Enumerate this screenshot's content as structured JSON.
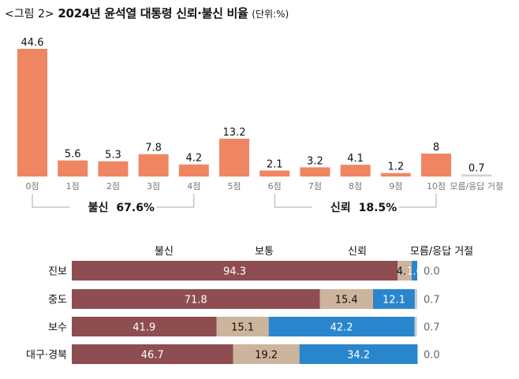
{
  "title": {
    "prefix": "<그림 2>",
    "main": "2024년 윤석열 대통령 신뢰·불신 비율",
    "unit": "(단위:%)"
  },
  "chart_data": [
    {
      "type": "bar",
      "title": "2024년 윤석열 대통령 신뢰·불신 비율",
      "categories": [
        "0점",
        "1점",
        "2점",
        "3점",
        "4점",
        "5점",
        "6점",
        "7점",
        "8점",
        "9점",
        "10점",
        "모름/응답 거절"
      ],
      "values": [
        44.6,
        5.6,
        5.3,
        7.8,
        4.2,
        13.2,
        2.1,
        3.2,
        4.1,
        1.2,
        8,
        0.7
      ],
      "value_labels": [
        "44.6",
        "5.6",
        "5.3",
        "7.8",
        "4.2",
        "13.2",
        "2.1",
        "3.2",
        "4.1",
        "1.2",
        "8",
        "0.7"
      ],
      "colors": {
        "bar": "#f08562",
        "na_bar": "#d0d0d0"
      },
      "groups": [
        {
          "label": "불신",
          "value_label": "67.6%",
          "from": "0점",
          "to": "4점"
        },
        {
          "label": "신뢰",
          "value_label": "18.5%",
          "from": "6점",
          "to": "10점"
        }
      ],
      "xlabel": "",
      "ylabel": "",
      "ylim": [
        0,
        50
      ],
      "grid": false
    },
    {
      "type": "bar",
      "orientation": "horizontal-stacked",
      "categories": [
        "진보",
        "중도",
        "보수",
        "대구·경북"
      ],
      "series": [
        {
          "name": "불신",
          "values": [
            94.3,
            71.8,
            41.9,
            46.7
          ],
          "color": "#8e4e51",
          "label_color": "#ffffff"
        },
        {
          "name": "보통",
          "values": [
            4.1,
            15.4,
            15.1,
            19.2
          ],
          "color": "#cdb49c",
          "label_color": "#111111"
        },
        {
          "name": "신뢰",
          "values": [
            1.6,
            12.1,
            42.2,
            34.2
          ],
          "color": "#2a86cc",
          "label_color": "#ffffff"
        },
        {
          "name": "모름/응답 거절",
          "values": [
            0.0,
            0.7,
            0.7,
            0.0
          ],
          "color": "#cccccc",
          "label_color": "#666666"
        }
      ],
      "value_labels": [
        [
          "94.3",
          "4.1",
          "1.6",
          "0.0"
        ],
        [
          "71.8",
          "15.4",
          "12.1",
          "0.7"
        ],
        [
          "41.9",
          "15.1",
          "42.2",
          "0.7"
        ],
        [
          "46.7",
          "19.2",
          "34.2",
          "0.0"
        ]
      ],
      "xlim": [
        0,
        100
      ],
      "legend": "top",
      "grid": false
    }
  ]
}
